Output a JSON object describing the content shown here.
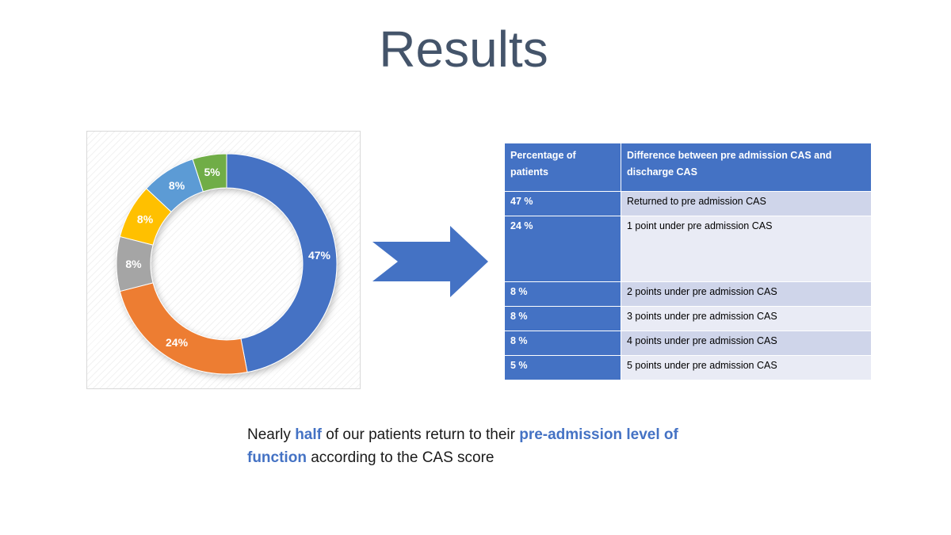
{
  "slide": {
    "title": "Results",
    "caption": {
      "part1": "Nearly ",
      "highlight1": "half",
      "part2": " of our patients return to their ",
      "highlight2": "pre-admission level of function",
      "part3": " according to the CAS score"
    }
  },
  "colors": {
    "accent": "#4472c4",
    "title": "#44546a"
  },
  "chart_data": {
    "type": "pie",
    "subtype": "doughnut",
    "categories": [
      "Returned to pre admission CAS",
      "1 point under",
      "2 points under",
      "3 points under",
      "4 points under",
      "5 points under"
    ],
    "values": [
      47,
      24,
      8,
      8,
      8,
      5
    ],
    "data_labels": [
      "47%",
      "24%",
      "8%",
      "8%",
      "8%",
      "5%"
    ],
    "colors": [
      "#4472c4",
      "#ed7d31",
      "#a5a5a5",
      "#ffc000",
      "#5b9bd5",
      "#70ad47"
    ],
    "title": "",
    "legend": "none"
  },
  "table": {
    "headers": [
      "Percentage of patients",
      "Difference between pre admission CAS and discharge CAS"
    ],
    "rows": [
      {
        "pct": "47 %",
        "desc": "Returned to pre admission CAS"
      },
      {
        "pct": "24 %",
        "desc": "1 point under pre admission CAS"
      },
      {
        "pct": "8 %",
        "desc": "2 points under pre admission CAS"
      },
      {
        "pct": "8 %",
        "desc": "3 points under pre admission CAS"
      },
      {
        "pct": "8 %",
        "desc": "4 points under pre admission CAS"
      },
      {
        "pct": "5 %",
        "desc": "5 points under pre admission CAS"
      }
    ]
  }
}
